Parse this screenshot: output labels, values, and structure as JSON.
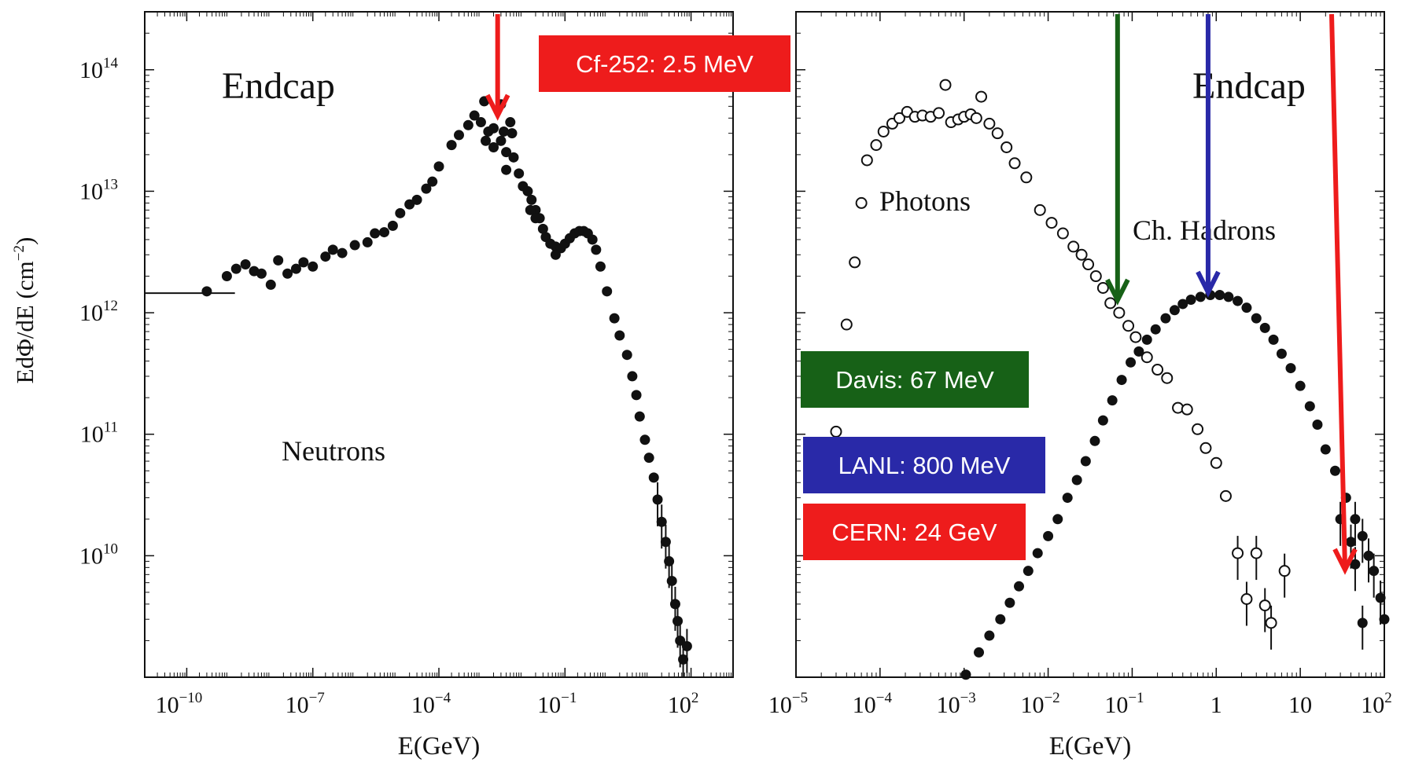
{
  "colors": {
    "red": "#ee1c1c",
    "green": "#176117",
    "blue": "#2929a8",
    "ink": "#111111"
  },
  "ylabel": "EdΦ/dE (cm",
  "ylabel_exp": "−2",
  "ylabel_close": ")",
  "chart_data": [
    {
      "type": "scatter",
      "panel": "left",
      "title": "Endcap",
      "xlabel": "E(GeV)",
      "ylabel": "EdΦ/dE (cm−2)",
      "xscale": "log",
      "yscale": "log",
      "xlim": [
        1e-11,
        1000
      ],
      "ylim": [
        1000000000.0,
        300000000000000.0
      ],
      "xticks": [
        {
          "value": 1e-10,
          "base": "10",
          "exp": "−10"
        },
        {
          "value": 1e-07,
          "base": "10",
          "exp": "−7"
        },
        {
          "value": 0.0001,
          "base": "10",
          "exp": "−4"
        },
        {
          "value": 0.1,
          "base": "10",
          "exp": "−1"
        },
        {
          "value": 100,
          "base": "10",
          "exp": "2"
        }
      ],
      "yticks": [
        {
          "value": 10000000000.0,
          "base": "10",
          "exp": "10"
        },
        {
          "value": 100000000000.0,
          "base": "10",
          "exp": "11"
        },
        {
          "value": 1000000000000.0,
          "base": "10",
          "exp": "12"
        },
        {
          "value": 10000000000000.0,
          "base": "10",
          "exp": "13"
        },
        {
          "value": 100000000000000.0,
          "base": "10",
          "exp": "14"
        }
      ],
      "labels": [
        {
          "text": "Neutrons",
          "x": 1e-06,
          "y": 110000000000.0
        }
      ],
      "series": [
        {
          "name": "Neutrons",
          "marker": "filled",
          "points": [
            [
              3e-10,
              1500000000000.0
            ],
            [
              9e-10,
              2000000000000.0
            ],
            [
              1.5e-09,
              2300000000000.0
            ],
            [
              2.5e-09,
              2500000000000.0
            ],
            [
              4e-09,
              2200000000000.0
            ],
            [
              6e-09,
              2100000000000.0
            ],
            [
              1e-08,
              1700000000000.0
            ],
            [
              1.5e-08,
              2700000000000.0
            ],
            [
              2.5e-08,
              2100000000000.0
            ],
            [
              4e-08,
              2300000000000.0
            ],
            [
              6e-08,
              2600000000000.0
            ],
            [
              1e-07,
              2400000000000.0
            ],
            [
              2e-07,
              2900000000000.0
            ],
            [
              3e-07,
              3300000000000.0
            ],
            [
              5e-07,
              3100000000000.0
            ],
            [
              1e-06,
              3600000000000.0
            ],
            [
              2e-06,
              3800000000000.0
            ],
            [
              3e-06,
              4500000000000.0
            ],
            [
              5e-06,
              4600000000000.0
            ],
            [
              8e-06,
              5200000000000.0
            ],
            [
              1.2e-05,
              6600000000000.0
            ],
            [
              2e-05,
              7800000000000.0
            ],
            [
              3e-05,
              8500000000000.0
            ],
            [
              5e-05,
              10500000000000.0
            ],
            [
              7e-05,
              12000000000000.0
            ],
            [
              0.0001,
              16000000000000.0
            ],
            [
              0.0002,
              24000000000000.0
            ],
            [
              0.0003,
              29000000000000.0
            ],
            [
              0.0005,
              35000000000000.0
            ],
            [
              0.0007,
              42000000000000.0
            ],
            [
              0.001,
              37000000000000.0
            ],
            [
              0.0015,
              31000000000000.0
            ],
            [
              0.002,
              33000000000000.0
            ],
            [
              0.003,
              26000000000000.0
            ],
            [
              0.004,
              21000000000000.0
            ],
            [
              0.006,
              19000000000000.0
            ],
            [
              0.008,
              14000000000000.0
            ],
            [
              0.01,
              11000000000000.0
            ],
            [
              0.013,
              10000000000000.0
            ],
            [
              0.016,
              8500000000000.0
            ],
            [
              0.02,
              7000000000000.0
            ],
            [
              0.025,
              6000000000000.0
            ],
            [
              0.03,
              4900000000000.0
            ],
            [
              0.035,
              4200000000000.0
            ],
            [
              0.045,
              3700000000000.0
            ],
            [
              0.06,
              3500000000000.0
            ],
            [
              0.08,
              3400000000000.0
            ],
            [
              0.1,
              3700000000000.0
            ],
            [
              0.13,
              4100000000000.0
            ],
            [
              0.17,
              4500000000000.0
            ],
            [
              0.22,
              4700000000000.0
            ],
            [
              0.28,
              4700000000000.0
            ],
            [
              0.35,
              4500000000000.0
            ],
            [
              0.45,
              4000000000000.0
            ],
            [
              0.55,
              3300000000000.0
            ],
            [
              0.7,
              2400000000000.0
            ],
            [
              1,
              1500000000000.0
            ],
            [
              1.5,
              900000000000.0
            ],
            [
              2,
              650000000000.0
            ],
            [
              3,
              450000000000.0
            ],
            [
              4,
              300000000000.0
            ],
            [
              5,
              210000000000.0
            ],
            [
              6,
              140000000000.0
            ],
            [
              8,
              90000000000.0
            ],
            [
              10,
              64000000000.0
            ],
            [
              13,
              44000000000.0
            ],
            [
              16,
              29000000000.0
            ],
            [
              20,
              19000000000.0
            ],
            [
              25,
              13000000000.0
            ],
            [
              30,
              9000000000.0
            ],
            [
              35,
              6200000000.0
            ],
            [
              42,
              4000000000.0
            ],
            [
              48,
              2900000000.0
            ],
            [
              55,
              2000000000.0
            ],
            [
              65,
              1400000000.0
            ],
            [
              80,
              1800000000.0
            ],
            [
              0.0013,
              26000000000000.0
            ],
            [
              0.002,
              23000000000000.0
            ],
            [
              0.003,
              52000000000000.0
            ],
            [
              0.0035,
              31000000000000.0
            ],
            [
              0.005,
              37000000000000.0
            ],
            [
              0.0055,
              30000000000000.0
            ],
            [
              0.004,
              15000000000000.0
            ],
            [
              0.015,
              7000000000000.0
            ],
            [
              0.02,
              6000000000000.0
            ],
            [
              0.06,
              3000000000000.0
            ],
            [
              0.0012,
              55000000000000.0
            ]
          ]
        }
      ],
      "dash_line": {
        "x1": 1e-11,
        "x2": 1.4e-09,
        "y": 1450000000000.0
      },
      "annotations": [
        {
          "text": "Cf-252: 2.5 MeV",
          "x": 0.0025,
          "color": "red"
        }
      ]
    },
    {
      "type": "scatter",
      "panel": "right",
      "title": "Endcap",
      "xlabel": "E(GeV)",
      "xscale": "log",
      "yscale": "log",
      "xlim": [
        1e-05,
        100
      ],
      "ylim": [
        1000000000.0,
        300000000000000.0
      ],
      "xticks": [
        {
          "value": 1e-05,
          "base": "10",
          "exp": "−5"
        },
        {
          "value": 0.0001,
          "base": "10",
          "exp": "−4"
        },
        {
          "value": 0.001,
          "base": "10",
          "exp": "−3"
        },
        {
          "value": 0.01,
          "base": "10",
          "exp": "−2"
        },
        {
          "value": 0.1,
          "base": "10",
          "exp": "−1"
        },
        {
          "value": 1,
          "base": "1",
          "exp": ""
        },
        {
          "value": 10,
          "base": "10",
          "exp": ""
        },
        {
          "value": 100,
          "base": "10",
          "exp": "2"
        }
      ],
      "labels": [
        {
          "text": "Photons",
          "x": 0.00033,
          "y": 15000000000000.0
        },
        {
          "text": "Ch. Hadrons",
          "x": 0.7,
          "y": 8000000000000.0
        }
      ],
      "series": [
        {
          "name": "Photons",
          "marker": "open",
          "points": [
            [
              3e-05,
              105000000000.0
            ],
            [
              4e-05,
              800000000000.0
            ],
            [
              5e-05,
              2600000000000.0
            ],
            [
              6e-05,
              8000000000000.0
            ],
            [
              7e-05,
              18000000000000.0
            ],
            [
              9e-05,
              24000000000000.0
            ],
            [
              0.00011,
              31000000000000.0
            ],
            [
              0.00014,
              36000000000000.0
            ],
            [
              0.00017,
              40000000000000.0
            ],
            [
              0.00021,
              45000000000000.0
            ],
            [
              0.00026,
              41000000000000.0
            ],
            [
              0.00032,
              42000000000000.0
            ],
            [
              0.0004,
              41000000000000.0
            ],
            [
              0.0005,
              44000000000000.0
            ],
            [
              0.0006,
              75000000000000.0
            ],
            [
              0.0007,
              37000000000000.0
            ],
            [
              0.00085,
              39000000000000.0
            ],
            [
              0.001,
              41000000000000.0
            ],
            [
              0.0012,
              43000000000000.0
            ],
            [
              0.0014,
              40000000000000.0
            ],
            [
              0.0016,
              60000000000000.0
            ],
            [
              0.002,
              36000000000000.0
            ],
            [
              0.0025,
              30000000000000.0
            ],
            [
              0.0032,
              23000000000000.0
            ],
            [
              0.004,
              17000000000000.0
            ],
            [
              0.0055,
              13000000000000.0
            ],
            [
              0.008,
              7000000000000.0
            ],
            [
              0.011,
              5500000000000.0
            ],
            [
              0.015,
              4500000000000.0
            ],
            [
              0.02,
              3500000000000.0
            ],
            [
              0.025,
              3000000000000.0
            ],
            [
              0.03,
              2500000000000.0
            ],
            [
              0.037,
              2000000000000.0
            ],
            [
              0.045,
              1600000000000.0
            ],
            [
              0.055,
              1200000000000.0
            ],
            [
              0.07,
              1000000000000.0
            ],
            [
              0.09,
              780000000000.0
            ],
            [
              0.11,
              630000000000.0
            ],
            [
              0.15,
              430000000000.0
            ],
            [
              0.2,
              340000000000.0
            ],
            [
              0.26,
              290000000000.0
            ],
            [
              0.35,
              165000000000.0
            ],
            [
              0.45,
              160000000000.0
            ],
            [
              0.6,
              110000000000.0
            ],
            [
              0.75,
              77000000000.0
            ],
            [
              1,
              58000000000.0
            ],
            [
              1.3,
              31000000000.0
            ],
            [
              1.8,
              10500000000.0
            ],
            [
              2.3,
              4400000000.0
            ],
            [
              3,
              10500000000.0
            ],
            [
              3.8,
              3900000000.0
            ],
            [
              4.5,
              2800000000.0
            ],
            [
              6.5,
              7500000000.0
            ]
          ]
        },
        {
          "name": "Ch. Hadrons",
          "marker": "filled",
          "points": [
            [
              0.00105,
              1050000000.0
            ],
            [
              0.0015,
              1600000000.0
            ],
            [
              0.002,
              2200000000.0
            ],
            [
              0.0027,
              3000000000.0
            ],
            [
              0.0035,
              4100000000.0
            ],
            [
              0.0045,
              5600000000.0
            ],
            [
              0.0058,
              7500000000.0
            ],
            [
              0.0075,
              10500000000.0
            ],
            [
              0.01,
              14500000000.0
            ],
            [
              0.013,
              20000000000.0
            ],
            [
              0.017,
              30000000000.0
            ],
            [
              0.022,
              42000000000.0
            ],
            [
              0.028,
              60000000000.0
            ],
            [
              0.036,
              88000000000.0
            ],
            [
              0.045,
              130000000000.0
            ],
            [
              0.058,
              190000000000.0
            ],
            [
              0.075,
              280000000000.0
            ],
            [
              0.096,
              390000000000.0
            ],
            [
              0.12,
              480000000000.0
            ],
            [
              0.15,
              600000000000.0
            ],
            [
              0.19,
              730000000000.0
            ],
            [
              0.25,
              900000000000.0
            ],
            [
              0.32,
              1050000000000.0
            ],
            [
              0.4,
              1180000000000.0
            ],
            [
              0.5,
              1280000000000.0
            ],
            [
              0.65,
              1350000000000.0
            ],
            [
              0.85,
              1400000000000.0
            ],
            [
              1.1,
              1400000000000.0
            ],
            [
              1.4,
              1350000000000.0
            ],
            [
              1.8,
              1250000000000.0
            ],
            [
              2.3,
              1100000000000.0
            ],
            [
              3,
              900000000000.0
            ],
            [
              3.8,
              750000000000.0
            ],
            [
              4.8,
              600000000000.0
            ],
            [
              6,
              460000000000.0
            ],
            [
              7.7,
              350000000000.0
            ],
            [
              10,
              250000000000.0
            ],
            [
              13,
              170000000000.0
            ],
            [
              16,
              120000000000.0
            ],
            [
              20,
              75000000000.0
            ],
            [
              26,
              50000000000.0
            ],
            [
              35,
              30000000000.0
            ],
            [
              45,
              20000000000.0
            ],
            [
              55,
              14500000000.0
            ],
            [
              65,
              10000000000.0
            ],
            [
              75,
              7500000000.0
            ],
            [
              90,
              4500000000.0
            ],
            [
              100,
              3000000000.0
            ],
            [
              30,
              20000000000.0
            ],
            [
              40,
              13000000000.0
            ],
            [
              45,
              8500000000.0
            ],
            [
              55,
              2800000000.0
            ]
          ]
        }
      ],
      "annotations": [
        {
          "text": "Davis: 67 MeV",
          "x": 0.067,
          "color": "green"
        },
        {
          "text": "LANL: 800 MeV",
          "x": 0.8,
          "color": "blue"
        },
        {
          "text": "CERN: 24 GeV",
          "x": 24,
          "color": "red"
        }
      ]
    }
  ]
}
